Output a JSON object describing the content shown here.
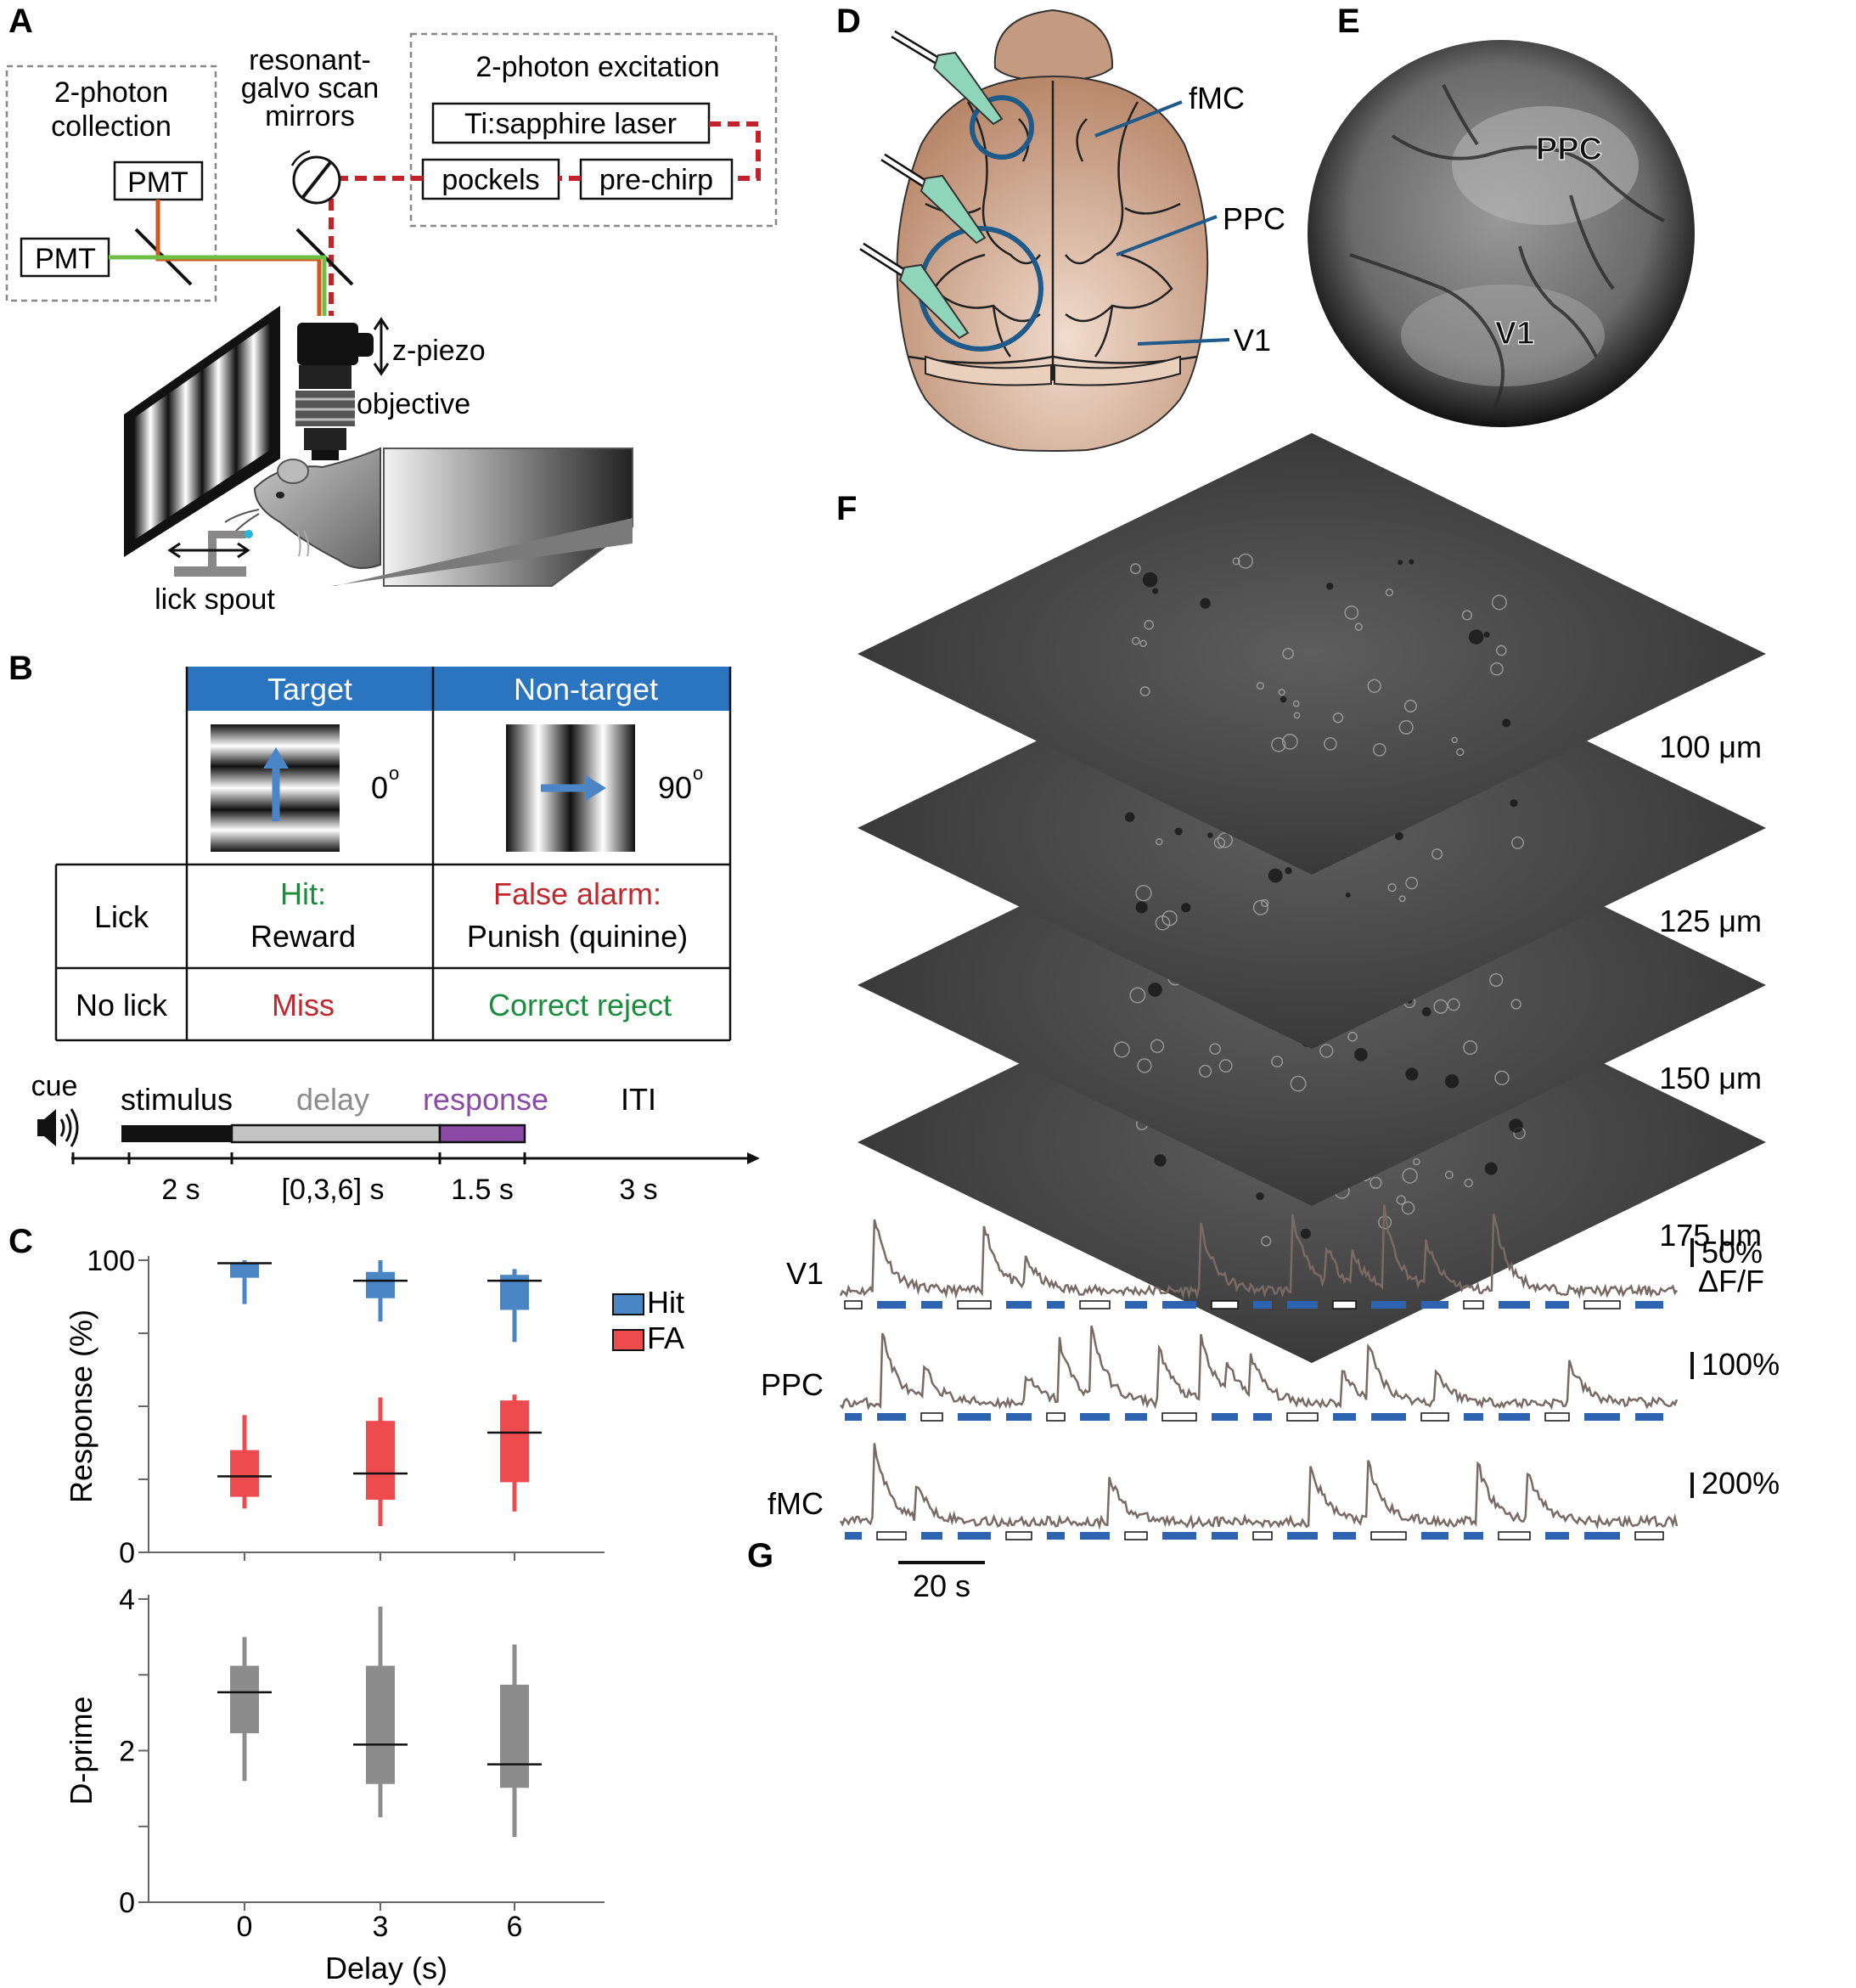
{
  "panels": {
    "A": "A",
    "B": "B",
    "C": "C",
    "D": "D",
    "E": "E",
    "F": "F",
    "G": "G"
  },
  "panelA": {
    "collection_line1": "2-photon",
    "collection_line2": "collection",
    "pmt_top": "PMT",
    "pmt_left": "PMT",
    "scan_line1": "resonant-",
    "scan_line2": "galvo scan",
    "scan_line3": "mirrors",
    "excitation_title": "2-photon excitation",
    "laser": "Ti:sapphire laser",
    "pockels": "pockels",
    "prechirp": "pre-chirp",
    "zpiezo": "z-piezo",
    "objective": "objective",
    "lickspout": "lick spout"
  },
  "panelB": {
    "col_target": "Target",
    "col_nontarget": "Non-target",
    "angle_target": "0",
    "angle_nontarget": "90",
    "degree": "o",
    "row_lick": "Lick",
    "row_nolick": "No lick",
    "hit_label": "Hit:",
    "hit_outcome": "Reward",
    "fa_label": "False alarm:",
    "fa_outcome": "Punish (quinine)",
    "miss": "Miss",
    "correct_reject": "Correct reject",
    "colors": {
      "header": "#2a74c0",
      "green": "#1a8c3c",
      "red": "#c0282d",
      "purple": "#8a4aa6",
      "gray": "#8c8c8c"
    },
    "timeline": {
      "cue": "cue",
      "stimulus": "stimulus",
      "delay": "delay",
      "response": "response",
      "iti": "ITI",
      "t_stim": "2 s",
      "t_delay": "[0,3,6] s",
      "t_resp": "1.5 s",
      "t_iti": "3 s"
    }
  },
  "chart_data": [
    {
      "type": "box",
      "ylabel": "Response (%)",
      "ylim": [
        0,
        100
      ],
      "yticks": [
        "0",
        "100"
      ],
      "categories": [
        "0",
        "3",
        "6"
      ],
      "legend": [
        "Hit",
        "FA"
      ],
      "colors": {
        "Hit": "#4a86c5",
        "FA": "#ee4b4f"
      },
      "series": [
        {
          "name": "Hit",
          "median": [
            99,
            93,
            93
          ],
          "q1": [
            94,
            87,
            83
          ],
          "q3": [
            99,
            96,
            95
          ],
          "min": [
            85,
            79,
            72
          ],
          "max": [
            100,
            100,
            97
          ]
        },
        {
          "name": "FA",
          "median": [
            26,
            27,
            41
          ],
          "q1": [
            19,
            18,
            24
          ],
          "q3": [
            35,
            45,
            52
          ],
          "min": [
            15,
            9,
            14
          ],
          "max": [
            47,
            53,
            54
          ]
        }
      ]
    },
    {
      "type": "box",
      "ylabel": "D-prime",
      "xlabel": "Delay (s)",
      "ylim": [
        0,
        4
      ],
      "yticks": [
        "0",
        "2",
        "4"
      ],
      "categories": [
        "0",
        "3",
        "6"
      ],
      "color": "#8c8c8c",
      "series": [
        {
          "name": "",
          "median": [
            2.77,
            2.08,
            1.82
          ],
          "q1": [
            2.23,
            1.56,
            1.51
          ],
          "q3": [
            3.12,
            3.12,
            2.87
          ],
          "min": [
            1.6,
            1.12,
            0.86
          ],
          "max": [
            3.5,
            3.9,
            3.4
          ]
        }
      ]
    }
  ],
  "panelD": {
    "fmc": "fMC",
    "ppc": "PPC",
    "v1": "V1"
  },
  "panelE": {
    "ppc": "PPC",
    "v1": "V1"
  },
  "panelF": {
    "depths": [
      "100 μm",
      "125 μm",
      "150 μm",
      "175 μm"
    ]
  },
  "panelG": {
    "unit": "ΔF/F",
    "traces": [
      {
        "name": "V1",
        "scale": "50%"
      },
      {
        "name": "PPC",
        "scale": "100%"
      },
      {
        "name": "fMC",
        "scale": "200%"
      }
    ],
    "time_scale": "20 s",
    "trace_color": "#7a6a66",
    "target_color": "#2e63b1"
  }
}
